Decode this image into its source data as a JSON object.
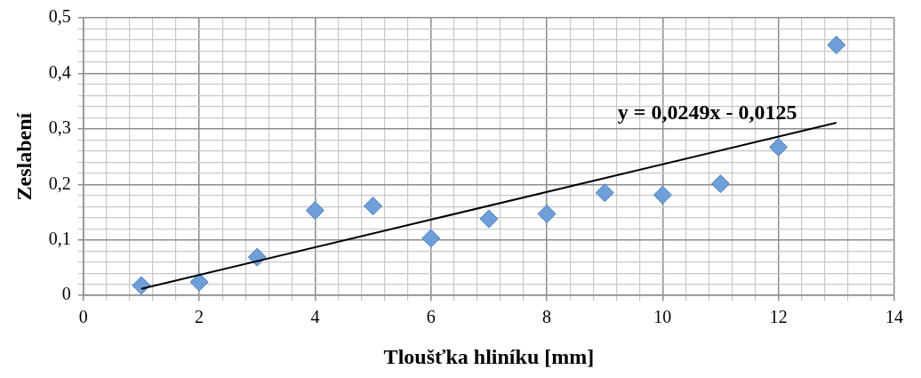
{
  "chart_data": {
    "type": "scatter",
    "xlabel": "Tloušťka hliníku [mm]",
    "ylabel": "Zeslabení",
    "x": [
      1,
      2,
      3,
      4,
      5,
      6,
      7,
      8,
      9,
      10,
      11,
      12,
      13
    ],
    "series": [
      {
        "color": "#6f9fd8",
        "marker": "diamond",
        "values": [
          0.018,
          0.024,
          0.069,
          0.153,
          0.161,
          0.103,
          0.138,
          0.147,
          0.185,
          0.181,
          0.201,
          0.267,
          0.451
        ]
      },
      {
        "type": "line",
        "color": "#000000",
        "marker": "none",
        "line_style": "solid",
        "x": [
          1,
          13
        ],
        "values": [
          0.012,
          0.311
        ]
      }
    ],
    "annotations": [
      "y = 0,0249x - 0,0125"
    ],
    "xlim": [
      0,
      14
    ],
    "ylim": [
      0,
      0.5
    ],
    "xticks": [
      0,
      {
        "value": 0.4,
        "label": null
      },
      {
        "value": 0.8,
        "label": null
      },
      {
        "value": 1.2,
        "label": null
      },
      {
        "value": 1.6,
        "label": null
      },
      2,
      {
        "value": 2.4,
        "label": null
      },
      {
        "value": 2.8,
        "label": null
      },
      {
        "value": 3.2,
        "label": null
      },
      {
        "value": 3.6,
        "label": null
      },
      4,
      {
        "value": 4.4,
        "label": null
      },
      {
        "value": 4.8,
        "label": null
      },
      {
        "value": 5.2,
        "label": null
      },
      {
        "value": 5.6,
        "label": null
      },
      6,
      {
        "value": 6.4,
        "label": null
      },
      {
        "value": 6.8,
        "label": null
      },
      {
        "value": 7.2,
        "label": null
      },
      {
        "value": 7.6,
        "label": null
      },
      8,
      {
        "value": 8.4,
        "label": null
      },
      {
        "value": 8.8,
        "label": null
      },
      {
        "value": 9.2,
        "label": null
      },
      {
        "value": 9.6,
        "label": null
      },
      10,
      {
        "value": 10.4,
        "label": null
      },
      {
        "value": 10.8,
        "label": null
      },
      {
        "value": 11.2,
        "label": null
      },
      {
        "value": 11.6,
        "label": null
      },
      12,
      {
        "value": 12.4,
        "label": null
      },
      {
        "value": 12.8,
        "label": null
      },
      {
        "value": 13.2,
        "label": null
      },
      {
        "value": 13.6,
        "label": null
      },
      14
    ],
    "yticks": [
      {
        "value": 0,
        "label": "0"
      },
      {
        "value": 0.02,
        "label": null
      },
      {
        "value": 0.04,
        "label": null
      },
      {
        "value": 0.06,
        "label": null
      },
      {
        "value": 0.08,
        "label": null
      },
      {
        "value": 0.1,
        "label": "0,1"
      },
      {
        "value": 0.12,
        "label": null
      },
      {
        "value": 0.14,
        "label": null
      },
      {
        "value": 0.16,
        "label": null
      },
      {
        "value": 0.18,
        "label": null
      },
      {
        "value": 0.2,
        "label": "0,2"
      },
      {
        "value": 0.22,
        "label": null
      },
      {
        "value": 0.24,
        "label": null
      },
      {
        "value": 0.26,
        "label": null
      },
      {
        "value": 0.28,
        "label": null
      },
      {
        "value": 0.3,
        "label": "0,3"
      },
      {
        "value": 0.32,
        "label": null
      },
      {
        "value": 0.34,
        "label": null
      },
      {
        "value": 0.36,
        "label": null
      },
      {
        "value": 0.38,
        "label": null
      },
      {
        "value": 0.4,
        "label": "0,4"
      },
      {
        "value": 0.42,
        "label": null
      },
      {
        "value": 0.44,
        "label": null
      },
      {
        "value": 0.46,
        "label": null
      },
      {
        "value": 0.48,
        "label": null
      },
      {
        "value": 0.5,
        "label": "0,5"
      }
    ],
    "grid": true,
    "legend": false
  }
}
